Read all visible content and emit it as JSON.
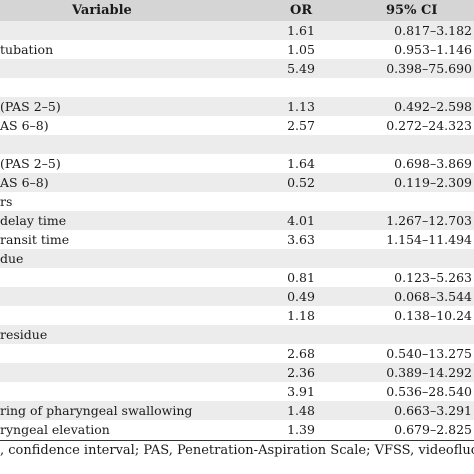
{
  "table": {
    "headers": {
      "variable": "Variable",
      "or": "OR",
      "ci": "95% CI"
    },
    "rows": [
      {
        "variable": "",
        "or": "1.61",
        "ci": "0.817–3.182"
      },
      {
        "variable": "tubation",
        "or": "1.05",
        "ci": "0.953–1.146"
      },
      {
        "variable": "",
        "or": "5.49",
        "ci": "0.398–75.690"
      },
      {
        "variable": "",
        "or": "",
        "ci": ""
      },
      {
        "variable": "(PAS 2–5)",
        "or": "1.13",
        "ci": "0.492–2.598"
      },
      {
        "variable": "AS 6–8)",
        "or": "2.57",
        "ci": "0.272–24.323"
      },
      {
        "variable": "",
        "or": "",
        "ci": ""
      },
      {
        "variable": "(PAS 2–5)",
        "or": "1.64",
        "ci": "0.698–3.869"
      },
      {
        "variable": "AS 6–8)",
        "or": "0.52",
        "ci": "0.119–2.309"
      },
      {
        "variable": "rs",
        "or": "",
        "ci": ""
      },
      {
        "variable": "delay time",
        "or": "4.01",
        "ci": "1.267–12.703"
      },
      {
        "variable": "ransit time",
        "or": "3.63",
        "ci": "1.154–11.494"
      },
      {
        "variable": "due",
        "or": "",
        "ci": ""
      },
      {
        "variable": "",
        "or": "0.81",
        "ci": "0.123–5.263"
      },
      {
        "variable": "",
        "or": "0.49",
        "ci": "0.068–3.544"
      },
      {
        "variable": "",
        "or": "1.18",
        "ci": "0.138–10.24"
      },
      {
        "variable": "residue",
        "or": "",
        "ci": ""
      },
      {
        "variable": "",
        "or": "2.68",
        "ci": "0.540–13.275"
      },
      {
        "variable": "",
        "or": "2.36",
        "ci": "0.389–14.292"
      },
      {
        "variable": "",
        "or": "3.91",
        "ci": "0.536–28.540"
      },
      {
        "variable": "ring of pharyngeal swallowing",
        "or": "1.48",
        "ci": "0.663–3.291"
      },
      {
        "variable": "ryngeal elevation",
        "or": "1.39",
        "ci": "0.679–2.825"
      }
    ]
  },
  "footnote": ", confidence interval; PAS, Penetration-Aspiration Scale; VFSS, videofluoroscopic"
}
